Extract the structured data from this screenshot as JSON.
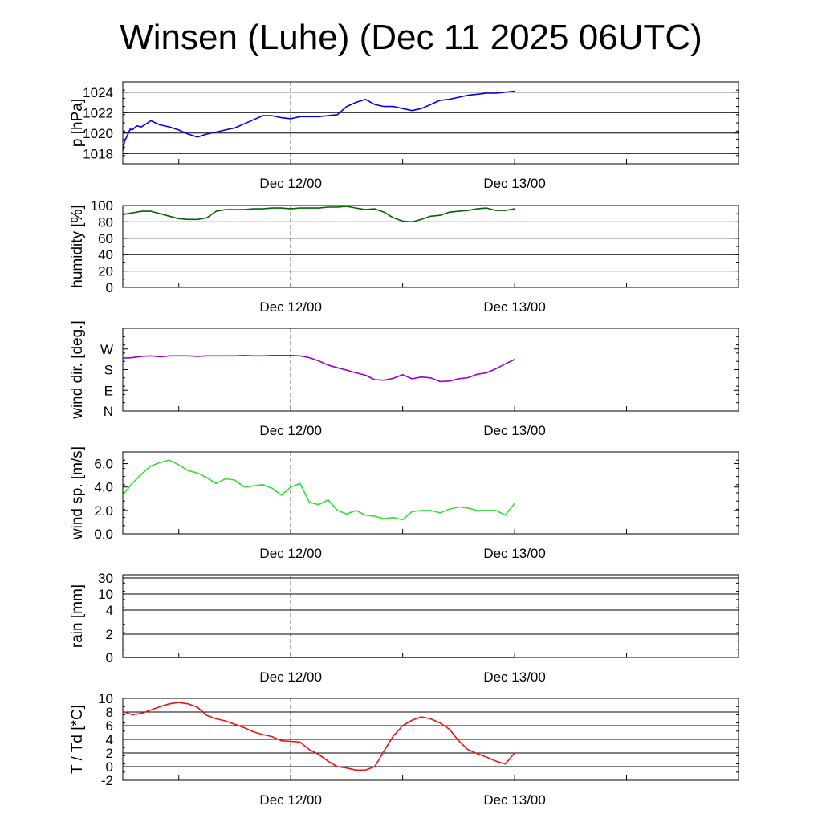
{
  "title": "Winsen (Luhe) (Dec 11 2025 06UTC)",
  "chart_data": [
    {
      "type": "line",
      "ylabel": "p [hPa]",
      "x_tick_labels": [
        "Dec 12/00",
        "Dec 13/00"
      ],
      "ylim": [
        1017,
        1025
      ],
      "y_ticks": [
        1018,
        1020,
        1022,
        1024
      ],
      "y_tick_labels": [
        "1018",
        "1020",
        "1022",
        "1024"
      ],
      "grid": true,
      "series": [
        {
          "color": "#0000e0",
          "x": [
            0,
            0.2,
            0.5,
            0.8,
            1,
            1.5,
            2,
            2.5,
            3,
            3.5,
            4,
            5,
            6,
            7,
            8,
            9,
            10,
            11,
            12,
            13,
            14,
            15,
            16,
            17,
            18,
            19,
            20,
            21,
            22,
            23,
            24,
            25,
            26,
            27,
            28,
            29,
            30,
            31,
            32,
            33,
            34,
            35,
            36,
            37,
            38,
            39,
            40,
            41,
            42
          ],
          "values": [
            1018.3,
            1019.2,
            1019.8,
            1020.4,
            1020.3,
            1020.7,
            1020.6,
            1020.9,
            1021.2,
            1021.0,
            1020.8,
            1020.6,
            1020.3,
            1019.9,
            1019.6,
            1019.9,
            1020.1,
            1020.3,
            1020.5,
            1020.9,
            1021.3,
            1021.7,
            1021.7,
            1021.5,
            1021.4,
            1021.6,
            1021.6,
            1021.6,
            1021.7,
            1021.8,
            1022.6,
            1023.0,
            1023.3,
            1022.8,
            1022.6,
            1022.6,
            1022.4,
            1022.2,
            1022.4,
            1022.8,
            1023.2,
            1023.3,
            1023.5,
            1023.7,
            1023.8,
            1023.9,
            1023.9,
            1024.0,
            1024.1
          ]
        }
      ]
    },
    {
      "type": "line",
      "ylabel": "humidity [%]",
      "x_tick_labels": [
        "Dec 12/00",
        "Dec 13/00"
      ],
      "ylim": [
        0,
        100
      ],
      "y_ticks": [
        0,
        20,
        40,
        60,
        80,
        100
      ],
      "y_tick_labels": [
        "0",
        "20",
        "40",
        "60",
        "80",
        "100"
      ],
      "grid": true,
      "series": [
        {
          "color": "#006400",
          "x": [
            0,
            1,
            2,
            3,
            4,
            5,
            6,
            7,
            8,
            9,
            10,
            11,
            12,
            13,
            14,
            15,
            16,
            17,
            18,
            19,
            20,
            21,
            22,
            23,
            24,
            25,
            26,
            27,
            28,
            29,
            30,
            31,
            32,
            33,
            34,
            35,
            36,
            37,
            38,
            39,
            40,
            41,
            42
          ],
          "values": [
            89,
            91,
            93,
            93,
            90,
            87,
            84,
            83,
            83,
            85,
            93,
            95,
            95,
            95,
            96,
            96,
            97,
            97,
            96,
            97,
            97,
            97,
            98,
            98,
            99,
            97,
            95,
            96,
            92,
            85,
            81,
            80,
            83,
            87,
            88,
            92,
            93,
            94,
            96,
            97,
            94,
            94,
            96
          ]
        }
      ]
    },
    {
      "type": "line",
      "ylabel": "wind dir. [deg.]",
      "x_tick_labels": [
        "Dec 12/00",
        "Dec 13/00"
      ],
      "ylim": [
        0,
        360
      ],
      "y_ticks": [
        0,
        90,
        180,
        270
      ],
      "y_tick_labels": [
        "N",
        "E",
        "S",
        "W"
      ],
      "grid": false,
      "series": [
        {
          "color": "#9400d3",
          "x": [
            0,
            1,
            2,
            3,
            4,
            5,
            6,
            7,
            8,
            9,
            10,
            11,
            12,
            13,
            14,
            15,
            16,
            17,
            18,
            19,
            20,
            21,
            22,
            23,
            24,
            25,
            26,
            27,
            28,
            29,
            30,
            31,
            32,
            33,
            34,
            35,
            36,
            37,
            38,
            39,
            40,
            41,
            42
          ],
          "values": [
            230,
            232,
            238,
            240,
            236,
            240,
            240,
            240,
            238,
            240,
            240,
            240,
            240,
            242,
            240,
            240,
            242,
            242,
            242,
            240,
            232,
            218,
            200,
            188,
            178,
            166,
            156,
            136,
            134,
            142,
            158,
            140,
            148,
            144,
            128,
            130,
            140,
            145,
            160,
            166,
            184,
            205,
            224
          ]
        }
      ]
    },
    {
      "type": "line",
      "ylabel": "wind sp. [m/s]",
      "x_tick_labels": [
        "Dec 12/00",
        "Dec 13/00"
      ],
      "ylim": [
        0,
        7
      ],
      "y_ticks": [
        0,
        2,
        4,
        6
      ],
      "y_tick_labels": [
        "0.0",
        "2.0",
        "4.0",
        "6.0"
      ],
      "grid": false,
      "series": [
        {
          "color": "#33dd33",
          "x": [
            0,
            1,
            2,
            3,
            4,
            5,
            6,
            7,
            8,
            9,
            10,
            11,
            12,
            13,
            14,
            15,
            16,
            17,
            18,
            19,
            20,
            21,
            22,
            23,
            24,
            25,
            26,
            27,
            28,
            29,
            30,
            31,
            32,
            33,
            34,
            35,
            36,
            37,
            38,
            39,
            40,
            41,
            42
          ],
          "values": [
            3.3,
            4.3,
            5.1,
            5.8,
            6.1,
            6.3,
            5.9,
            5.4,
            5.2,
            4.8,
            4.3,
            4.7,
            4.6,
            4.0,
            4.1,
            4.2,
            3.9,
            3.3,
            4.0,
            4.3,
            2.7,
            2.5,
            2.9,
            2.0,
            1.7,
            2.0,
            1.6,
            1.5,
            1.3,
            1.4,
            1.2,
            1.9,
            2.0,
            2.0,
            1.8,
            2.1,
            2.3,
            2.2,
            2.0,
            2.0,
            2.0,
            1.6,
            2.6
          ]
        }
      ]
    },
    {
      "type": "line",
      "ylabel": "rain [mm]",
      "x_tick_labels": [
        "Dec 12/00",
        "Dec 13/00"
      ],
      "y_scale": "nonlinear (0, 2, 4, 10, 30)",
      "y_ticks": [
        0,
        2,
        4,
        10,
        30
      ],
      "y_tick_labels": [
        "0",
        "2",
        "4",
        "10",
        "30"
      ],
      "grid": true,
      "series": [
        {
          "color": "#0000e0",
          "x": [
            0,
            42
          ],
          "values": [
            0,
            0
          ]
        }
      ]
    },
    {
      "type": "line",
      "ylabel": "T / Td [*C]",
      "x_tick_labels": [
        "Dec 12/00",
        "Dec 13/00"
      ],
      "ylim": [
        -2,
        10
      ],
      "y_ticks": [
        -2,
        0,
        2,
        4,
        6,
        8,
        10
      ],
      "y_tick_labels": [
        "-2",
        "0",
        "2",
        "4",
        "6",
        "8",
        "10"
      ],
      "grid": true,
      "series": [
        {
          "color": "#ee1111",
          "x": [
            0,
            1,
            2,
            3,
            4,
            5,
            6,
            7,
            8,
            9,
            10,
            11,
            12,
            13,
            14,
            15,
            16,
            17,
            18,
            19,
            20,
            21,
            22,
            23,
            24,
            25,
            26,
            27,
            28,
            29,
            30,
            31,
            32,
            33,
            34,
            35,
            36,
            37,
            38,
            39,
            40,
            41,
            42
          ],
          "values": [
            8.1,
            7.6,
            7.8,
            8.3,
            8.8,
            9.2,
            9.4,
            9.2,
            8.7,
            7.5,
            7.0,
            6.7,
            6.2,
            5.7,
            5.1,
            4.7,
            4.4,
            3.8,
            3.7,
            3.6,
            2.5,
            1.8,
            0.8,
            0.0,
            -0.2,
            -0.5,
            -0.5,
            0.0,
            2.3,
            4.5,
            6.0,
            6.8,
            7.3,
            7.0,
            6.4,
            5.5,
            3.8,
            2.5,
            1.9,
            1.4,
            0.8,
            0.4,
            2.0
          ]
        }
      ]
    }
  ]
}
